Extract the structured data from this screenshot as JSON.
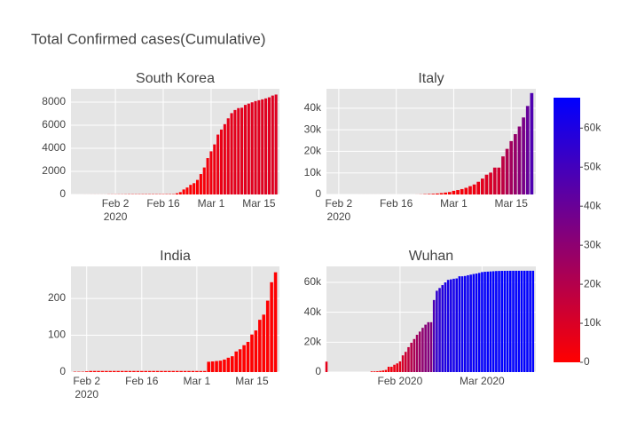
{
  "chart_data": {
    "title": "Total Confirmed cases(Cumulative)",
    "colorscale": [
      "#ff0000",
      "#0000ff"
    ],
    "colorbar": {
      "lim": [
        0,
        67800
      ],
      "ticks": [
        0,
        {
          "value": 10000,
          "label": "10k"
        },
        {
          "value": 20000,
          "label": "20k"
        },
        {
          "value": 30000,
          "label": "30k"
        },
        {
          "value": 40000,
          "label": "40k"
        },
        {
          "value": 50000,
          "label": "50k"
        },
        {
          "value": 60000,
          "label": "60k"
        }
      ]
    },
    "charts": [
      {
        "type": "bar",
        "title": "South Korea",
        "grid": true,
        "x": [
          "2020-01-22",
          "2020-01-23",
          "2020-01-24",
          "2020-01-25",
          "2020-01-26",
          "2020-01-27",
          "2020-01-28",
          "2020-01-29",
          "2020-01-30",
          "2020-01-31",
          "2020-02-01",
          "2020-02-02",
          "2020-02-03",
          "2020-02-04",
          "2020-02-05",
          "2020-02-06",
          "2020-02-07",
          "2020-02-08",
          "2020-02-09",
          "2020-02-10",
          "2020-02-11",
          "2020-02-12",
          "2020-02-13",
          "2020-02-14",
          "2020-02-15",
          "2020-02-16",
          "2020-02-17",
          "2020-02-18",
          "2020-02-19",
          "2020-02-20",
          "2020-02-21",
          "2020-02-22",
          "2020-02-23",
          "2020-02-24",
          "2020-02-25",
          "2020-02-26",
          "2020-02-27",
          "2020-02-28",
          "2020-02-29",
          "2020-03-01",
          "2020-03-02",
          "2020-03-03",
          "2020-03-04",
          "2020-03-05",
          "2020-03-06",
          "2020-03-07",
          "2020-03-08",
          "2020-03-09",
          "2020-03-10",
          "2020-03-11",
          "2020-03-12",
          "2020-03-13",
          "2020-03-14",
          "2020-03-15",
          "2020-03-16",
          "2020-03-17",
          "2020-03-18",
          "2020-03-19",
          "2020-03-20"
        ],
        "values": [
          1,
          1,
          2,
          2,
          3,
          4,
          4,
          4,
          4,
          11,
          12,
          15,
          15,
          16,
          19,
          23,
          24,
          24,
          25,
          27,
          28,
          28,
          28,
          28,
          28,
          29,
          30,
          31,
          31,
          104,
          204,
          433,
          602,
          833,
          977,
          1261,
          1766,
          2337,
          3150,
          3736,
          4335,
          5186,
          5621,
          6088,
          6593,
          7041,
          7314,
          7478,
          7513,
          7755,
          7869,
          7979,
          8086,
          8162,
          8236,
          8320,
          8413,
          8565,
          8652
        ],
        "xlim": [
          "2020-01-20",
          "2020-03-21"
        ],
        "xticks": [
          {
            "value": "2020-02-02",
            "label": "Feb 2\n2020"
          },
          {
            "value": "2020-02-16",
            "label": "Feb 16"
          },
          {
            "value": "2020-03-01",
            "label": "Mar 1"
          },
          {
            "value": "2020-03-15",
            "label": "Mar 15"
          }
        ],
        "ylim": [
          0,
          9150
        ],
        "yticks": [
          0,
          2000,
          4000,
          6000,
          8000
        ]
      },
      {
        "type": "bar",
        "title": "Italy",
        "grid": true,
        "x": [
          "2020-01-31",
          "2020-02-01",
          "2020-02-02",
          "2020-02-03",
          "2020-02-04",
          "2020-02-05",
          "2020-02-06",
          "2020-02-07",
          "2020-02-08",
          "2020-02-09",
          "2020-02-10",
          "2020-02-11",
          "2020-02-12",
          "2020-02-13",
          "2020-02-14",
          "2020-02-15",
          "2020-02-16",
          "2020-02-17",
          "2020-02-18",
          "2020-02-19",
          "2020-02-20",
          "2020-02-21",
          "2020-02-22",
          "2020-02-23",
          "2020-02-24",
          "2020-02-25",
          "2020-02-26",
          "2020-02-27",
          "2020-02-28",
          "2020-02-29",
          "2020-03-01",
          "2020-03-02",
          "2020-03-03",
          "2020-03-04",
          "2020-03-05",
          "2020-03-06",
          "2020-03-07",
          "2020-03-08",
          "2020-03-09",
          "2020-03-10",
          "2020-03-11",
          "2020-03-12",
          "2020-03-13",
          "2020-03-14",
          "2020-03-15",
          "2020-03-16",
          "2020-03-17",
          "2020-03-18",
          "2020-03-19",
          "2020-03-20"
        ],
        "values": [
          2,
          2,
          2,
          2,
          2,
          2,
          2,
          3,
          3,
          3,
          3,
          3,
          3,
          3,
          3,
          3,
          3,
          3,
          3,
          3,
          3,
          20,
          62,
          155,
          229,
          322,
          453,
          655,
          888,
          1128,
          1694,
          2036,
          2502,
          3089,
          3858,
          4636,
          5883,
          7375,
          9172,
          10149,
          12462,
          12462,
          17660,
          21157,
          24747,
          27980,
          31506,
          35713,
          41035,
          47021
        ],
        "xlim": [
          "2020-01-30",
          "2020-03-21"
        ],
        "xticks": [
          {
            "value": "2020-02-02",
            "label": "Feb 2\n2020"
          },
          {
            "value": "2020-02-16",
            "label": "Feb 16"
          },
          {
            "value": "2020-03-01",
            "label": "Mar 1"
          },
          {
            "value": "2020-03-15",
            "label": "Mar 15"
          }
        ],
        "ylim": [
          0,
          49000
        ],
        "yticks": [
          0,
          {
            "value": 10000,
            "label": "10k"
          },
          {
            "value": 20000,
            "label": "20k"
          },
          {
            "value": 30000,
            "label": "30k"
          },
          {
            "value": 40000,
            "label": "40k"
          }
        ]
      },
      {
        "type": "bar",
        "title": "India",
        "grid": true,
        "x": [
          "2020-01-30",
          "2020-01-31",
          "2020-02-01",
          "2020-02-02",
          "2020-02-03",
          "2020-02-04",
          "2020-02-05",
          "2020-02-06",
          "2020-02-07",
          "2020-02-08",
          "2020-02-09",
          "2020-02-10",
          "2020-02-11",
          "2020-02-12",
          "2020-02-13",
          "2020-02-14",
          "2020-02-15",
          "2020-02-16",
          "2020-02-17",
          "2020-02-18",
          "2020-02-19",
          "2020-02-20",
          "2020-02-21",
          "2020-02-22",
          "2020-02-23",
          "2020-02-24",
          "2020-02-25",
          "2020-02-26",
          "2020-02-27",
          "2020-02-28",
          "2020-02-29",
          "2020-03-01",
          "2020-03-02",
          "2020-03-03",
          "2020-03-04",
          "2020-03-05",
          "2020-03-06",
          "2020-03-07",
          "2020-03-08",
          "2020-03-09",
          "2020-03-10",
          "2020-03-11",
          "2020-03-12",
          "2020-03-13",
          "2020-03-14",
          "2020-03-15",
          "2020-03-16",
          "2020-03-17",
          "2020-03-18",
          "2020-03-19",
          "2020-03-20",
          "2020-03-21"
        ],
        "values": [
          1,
          1,
          1,
          2,
          3,
          3,
          3,
          3,
          3,
          3,
          3,
          3,
          3,
          3,
          3,
          3,
          3,
          3,
          3,
          3,
          3,
          3,
          3,
          3,
          3,
          3,
          3,
          3,
          3,
          3,
          3,
          3,
          3,
          3,
          28,
          29,
          30,
          31,
          34,
          39,
          43,
          56,
          62,
          73,
          82,
          102,
          113,
          142,
          156,
          194,
          244,
          271
        ],
        "xlim": [
          "2020-01-29",
          "2020-03-22"
        ],
        "xticks": [
          {
            "value": "2020-02-02",
            "label": "Feb 2\n2020"
          },
          {
            "value": "2020-02-16",
            "label": "Feb 16"
          },
          {
            "value": "2020-03-01",
            "label": "Mar 1"
          },
          {
            "value": "2020-03-15",
            "label": "Mar 15"
          }
        ],
        "ylim": [
          0,
          287
        ],
        "yticks": [
          0,
          100,
          200
        ]
      },
      {
        "type": "bar",
        "title": "Wuhan",
        "grid": true,
        "x": [
          "2020-01-06",
          "2020-01-22",
          "2020-01-23",
          "2020-01-24",
          "2020-01-25",
          "2020-01-26",
          "2020-01-27",
          "2020-01-28",
          "2020-01-29",
          "2020-01-30",
          "2020-01-31",
          "2020-02-01",
          "2020-02-02",
          "2020-02-03",
          "2020-02-04",
          "2020-02-05",
          "2020-02-06",
          "2020-02-07",
          "2020-02-08",
          "2020-02-09",
          "2020-02-10",
          "2020-02-11",
          "2020-02-12",
          "2020-02-13",
          "2020-02-14",
          "2020-02-15",
          "2020-02-16",
          "2020-02-17",
          "2020-02-18",
          "2020-02-19",
          "2020-02-20",
          "2020-02-21",
          "2020-02-22",
          "2020-02-23",
          "2020-02-24",
          "2020-02-25",
          "2020-02-26",
          "2020-02-27",
          "2020-02-28",
          "2020-02-29",
          "2020-03-01",
          "2020-03-02",
          "2020-03-03",
          "2020-03-04",
          "2020-03-05",
          "2020-03-06",
          "2020-03-07",
          "2020-03-08",
          "2020-03-09",
          "2020-03-10",
          "2020-03-11",
          "2020-03-12",
          "2020-03-13",
          "2020-03-14",
          "2020-03-15",
          "2020-03-16",
          "2020-03-17",
          "2020-03-18",
          "2020-03-19"
        ],
        "values": [
          7000,
          444,
          444,
          549,
          761,
          1058,
          1423,
          3554,
          3554,
          4903,
          5806,
          7153,
          11177,
          13522,
          16678,
          19665,
          22112,
          24953,
          27100,
          29631,
          31728,
          33366,
          33366,
          48206,
          54406,
          56249,
          58182,
          59989,
          61682,
          62031,
          62442,
          62662,
          64084,
          64084,
          64287,
          64786,
          65187,
          65596,
          65914,
          66337,
          66907,
          67103,
          67217,
          67332,
          67466,
          67592,
          67666,
          67707,
          67743,
          67760,
          67773,
          67781,
          67786,
          67790,
          67794,
          67798,
          67799,
          67800,
          67800
        ],
        "xlim": [
          "2020-01-06",
          "2020-03-20"
        ],
        "xticks": [
          {
            "value": "2020-02-01",
            "label": "Feb 2020"
          },
          {
            "value": "2020-03-01",
            "label": "Mar 2020"
          }
        ],
        "ylim": [
          0,
          70700
        ],
        "yticks": [
          0,
          {
            "value": 20000,
            "label": "20k"
          },
          {
            "value": 40000,
            "label": "40k"
          },
          {
            "value": 60000,
            "label": "60k"
          }
        ]
      }
    ]
  }
}
